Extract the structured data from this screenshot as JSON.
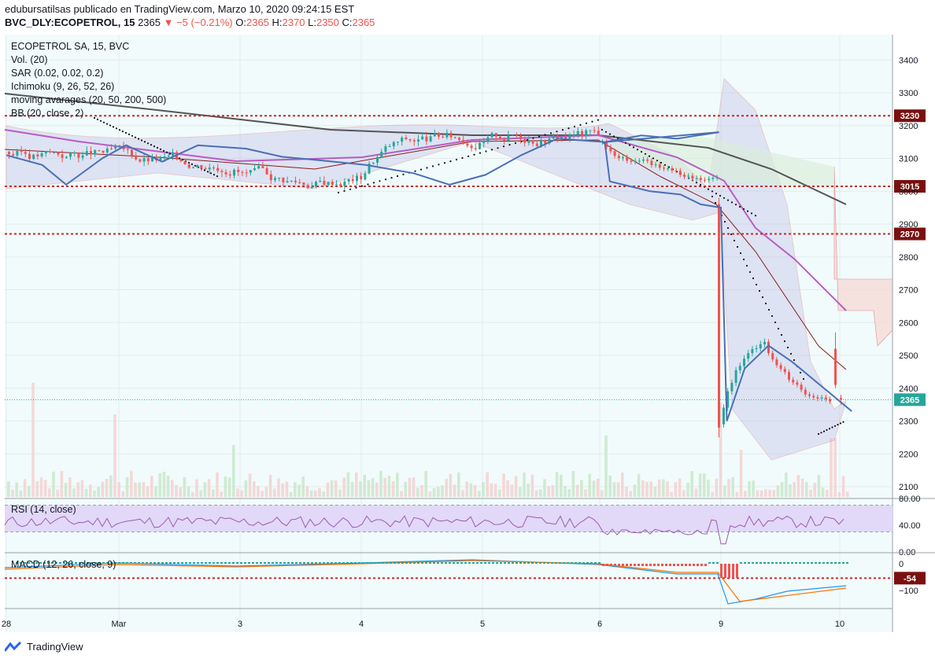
{
  "header": {
    "line1": "edubursatilsas publicado en TradingView.com, Marzo 10, 2020 09:24:15 EST",
    "symbol": "BVC_DLY:ECOPETROL, 15",
    "last": "2365",
    "change": "▼ −5 (−0.21%)",
    "o_label": "O:",
    "o": "2365",
    "h_label": "H:",
    "h": "2370",
    "l_label": "L:",
    "l": "2350",
    "c_label": "C:",
    "c": "2365"
  },
  "legend": {
    "title": "ECOPETROL SA, 15, BVC",
    "vol": "Vol. (20)",
    "sar": "SAR (0.02, 0.02, 0.2)",
    "ichimoku": "Ichimoku (9, 26, 52, 26)",
    "ma": "moving avarages (20, 50, 200, 500)",
    "bb": "BB (20, close, 2)",
    "rsi": "RSI (14, close)",
    "macd": "MACD (12, 26, close, 9)"
  },
  "footer": {
    "brand": "TradingView"
  },
  "colors": {
    "up": "#26a69a",
    "down": "#ef5350",
    "price_line_blue": "#4a6fb5",
    "ma_purple": "#b85cc4",
    "ma_dark": "#555555",
    "ma_red": "#8b1a1a",
    "bb": "#e05a5a",
    "level_red": "#c62828",
    "bg": "#f1fbfb"
  },
  "chart_data": {
    "type": "candlestick",
    "title": "ECOPETROL SA, 15, BVC",
    "x_ticks": [
      "28",
      "Mar",
      "3",
      "4",
      "5",
      "6",
      "9",
      "10"
    ],
    "y_ticks": [
      3400,
      3300,
      3200,
      3100,
      3000,
      2900,
      2800,
      2700,
      2600,
      2500,
      2400,
      2300,
      2200,
      2100
    ],
    "ylim": [
      2075,
      3430
    ],
    "horizontal_levels": [
      {
        "label": "3230",
        "value": 3230
      },
      {
        "label": "3015",
        "value": 3015
      },
      {
        "label": "2870",
        "value": 2870
      }
    ],
    "last_price": {
      "label": "2365",
      "value": 2365
    },
    "price_path": [
      [
        0,
        3110
      ],
      [
        0.3,
        3080
      ],
      [
        0.5,
        3020
      ],
      [
        0.8,
        3100
      ],
      [
        1.0,
        3140
      ],
      [
        1.3,
        3090
      ],
      [
        1.6,
        3140
      ],
      [
        2.0,
        3130
      ],
      [
        2.3,
        3105
      ],
      [
        2.6,
        3095
      ],
      [
        3.0,
        3080
      ],
      [
        3.4,
        3055
      ],
      [
        3.7,
        3020
      ],
      [
        4.0,
        3050
      ],
      [
        4.3,
        3110
      ],
      [
        4.6,
        3160
      ],
      [
        5.0,
        3150
      ],
      [
        5.3,
        3170
      ],
      [
        5.6,
        3160
      ],
      [
        5.95,
        3180
      ],
      [
        6.05,
        3150
      ],
      [
        6.1,
        3030
      ],
      [
        6.3,
        3015
      ],
      [
        6.5,
        3000
      ],
      [
        6.8,
        2990
      ],
      [
        7.0,
        2960
      ],
      [
        7.2,
        2950
      ],
      [
        7.25,
        2300
      ],
      [
        7.4,
        2460
      ],
      [
        7.6,
        2530
      ],
      [
        7.8,
        2480
      ],
      [
        8.0,
        2420
      ],
      [
        8.1,
        2390
      ],
      [
        8.3,
        2330
      ]
    ],
    "rsi": {
      "ylim": [
        0,
        80
      ],
      "ticks": [
        80,
        40,
        0
      ],
      "tick_labels": [
        "80.00",
        "40.00",
        "0.00"
      ],
      "band": [
        30,
        70
      ]
    },
    "macd": {
      "ticks": [
        0,
        -100
      ],
      "tick_labels": [
        "0",
        "−100"
      ],
      "marker": {
        "label": "−54",
        "value": -54
      }
    }
  }
}
